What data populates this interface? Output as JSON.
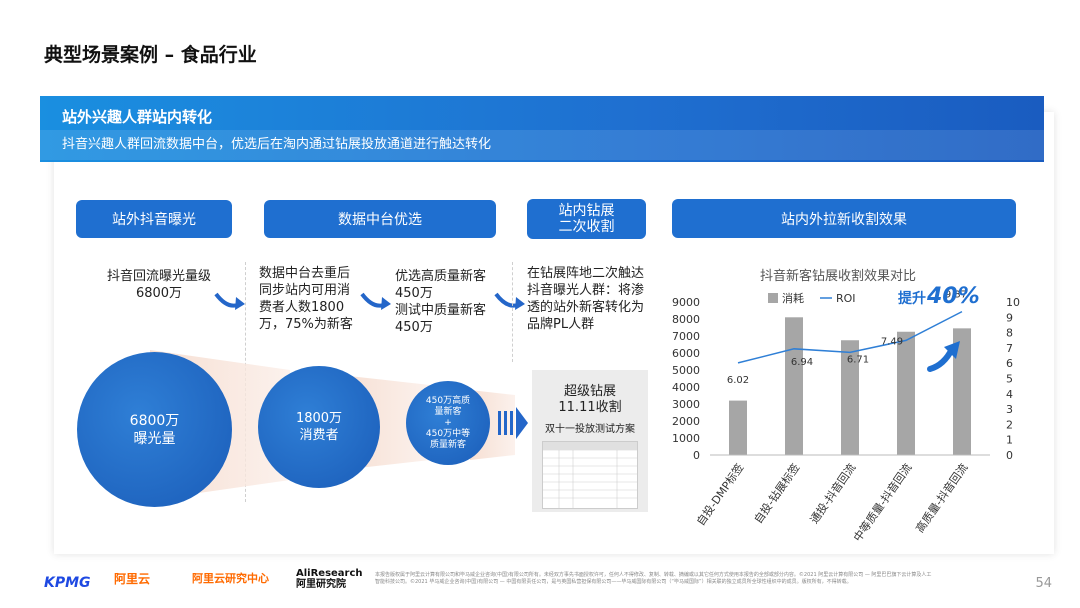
{
  "page": {
    "title": "典型场景案例 – 食品行业",
    "page_number": "54"
  },
  "banner": {
    "title": "站外兴趣人群站内转化",
    "subtitle": "抖音兴趣人群回流数据中台，优选后在淘内通过钻展投放通道进行触达转化"
  },
  "steps": [
    {
      "label": "站外抖音曝光",
      "desc": "抖音回流曝光量级\n6800万"
    },
    {
      "label": "数据中台优选",
      "desc_left": "数据中台去重后\n同步站内可用消\n费者人数1800\n万，75%为新客",
      "desc_right": "优选高质量新客\n450万\n测试中质量新客\n450万"
    },
    {
      "label": "站内钻展\n二次收割",
      "desc": "在钻展阵地二次触达\n抖音曝光人群：将渗\n透的站外新客转化为\n品牌PL人群"
    },
    {
      "label": "站内外拉新收割效果"
    }
  ],
  "circles": {
    "c1": {
      "line1": "6800万",
      "line2": "曝光量"
    },
    "c2": {
      "line1": "1800万",
      "line2": "消费者"
    },
    "c3": {
      "line1": "450万高质",
      "line2": "量新客",
      "line3": "+",
      "line4": "450万中等",
      "line5": "质量新客"
    }
  },
  "plan": {
    "title": "超级钻展\n11.11收割",
    "subtitle": "双十一投放测试方案"
  },
  "chart_data": {
    "type": "bar",
    "title": "抖音新客钻展收割效果对比",
    "categories": [
      "自投-DMP标签",
      "自投-钻展标签",
      "通投-抖音回流",
      "中等质量-抖音回流",
      "高质量-抖音回流"
    ],
    "series": [
      {
        "name": "消耗",
        "type": "bar",
        "axis": "left",
        "values": [
          3200,
          8100,
          6750,
          7250,
          7450
        ]
      },
      {
        "name": "ROI",
        "type": "line",
        "axis": "right",
        "values": [
          6.02,
          6.94,
          6.71,
          7.49,
          9.37
        ]
      }
    ],
    "ylim_left": [
      0,
      9000
    ],
    "yticks_left": [
      0,
      1000,
      2000,
      3000,
      4000,
      5000,
      6000,
      7000,
      8000,
      9000
    ],
    "ylim_right": [
      0,
      10
    ],
    "yticks_right": [
      0,
      1,
      2,
      3,
      4,
      5,
      6,
      7,
      8,
      9,
      10
    ],
    "annotation": {
      "prefix": "提升",
      "value": "40%"
    },
    "colors": {
      "bar": "#a6a6a6",
      "line": "#2f7fd6",
      "accent": "#1f6fd0"
    }
  },
  "footer": {
    "logos": [
      "KPMG",
      "阿里云",
      "阿里云研究中心",
      "AliResearch 阿里研究院"
    ],
    "text": "本报告版权属于阿里云计算有限公司和毕马威企业咨询(中国)有限公司所有。未经双方事先书面授权许可，任何人不得修改、复制、转载、摘编或以其它任何方式使用本报告的全部或部分内容。©2021 阿里云计算有限公司 — 阿里巴巴旗下云计算及人工智能科技公司。©2021 毕马威企业咨询(中国)有限公司 — 中国有限责任公司，是与英国私营担保有限公司——毕马威国际有限公司（“毕马威国际”）相关联的独立成员所全球性组织中的成员。版权所有，不得转载。"
  }
}
